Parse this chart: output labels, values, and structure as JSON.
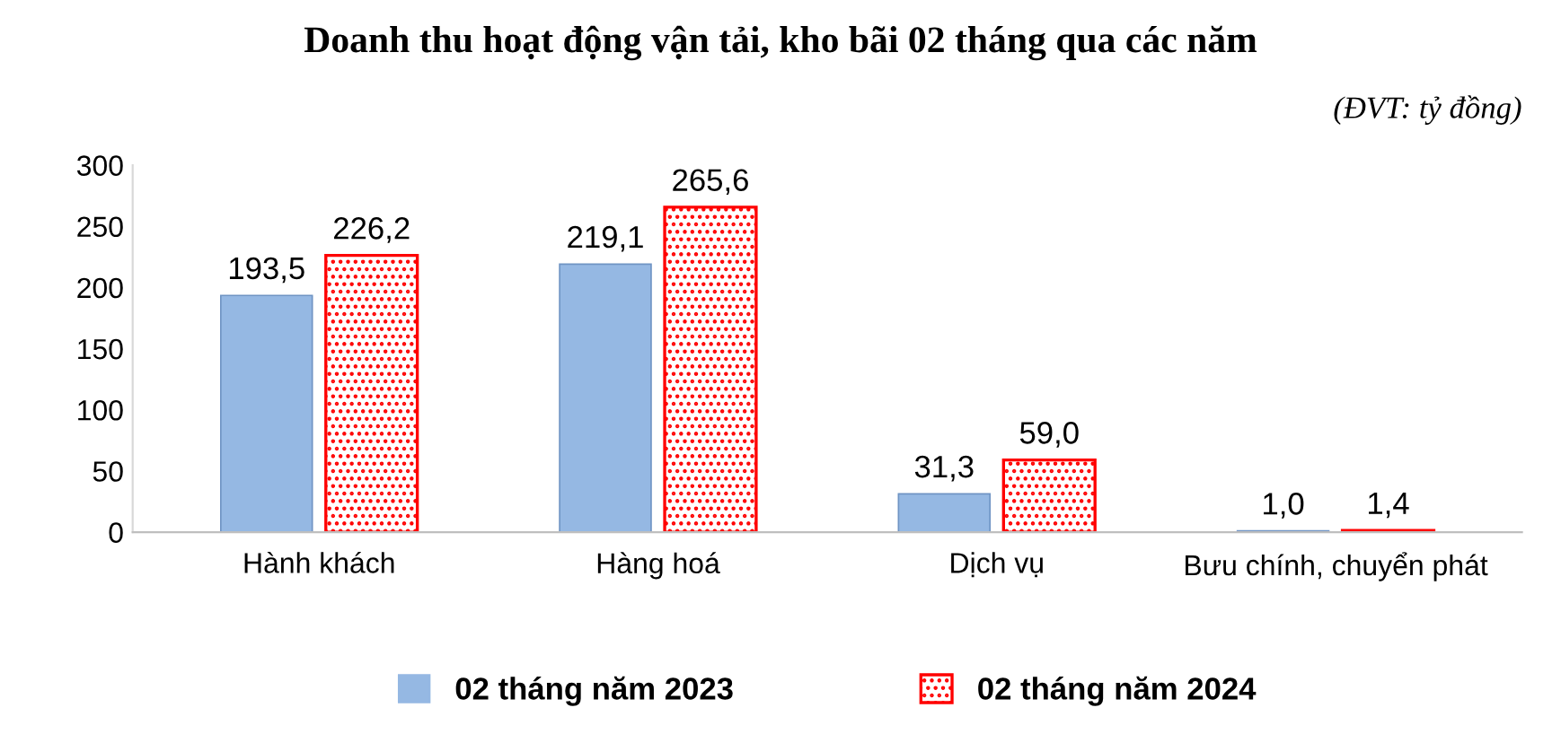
{
  "chart_data": {
    "type": "bar",
    "title": "Doanh thu hoạt động vận tải, kho bãi 02 tháng qua các năm",
    "subtitle": "(ĐVT: tỷ đồng)",
    "categories": [
      "Hành khách",
      "Hàng hoá",
      "Dịch vụ",
      "Bưu chính, chuyển phát"
    ],
    "series": [
      {
        "name": "02 tháng năm 2023",
        "color": "#95b8e3",
        "values": [
          193.5,
          219.1,
          31.3,
          1.0
        ],
        "value_labels": [
          "193,5",
          "219,1",
          "31,3",
          "1,0"
        ]
      },
      {
        "name": "02 tháng năm 2024",
        "color": "#ff0000",
        "values": [
          226.2,
          265.6,
          59.0,
          1.4
        ],
        "value_labels": [
          "226,2",
          "265,6",
          "59,0",
          "1,4"
        ]
      }
    ],
    "ylim": [
      0,
      300
    ],
    "yticks": [
      0,
      50,
      100,
      150,
      200,
      250,
      300
    ],
    "grid": false,
    "legend": "bottom"
  }
}
